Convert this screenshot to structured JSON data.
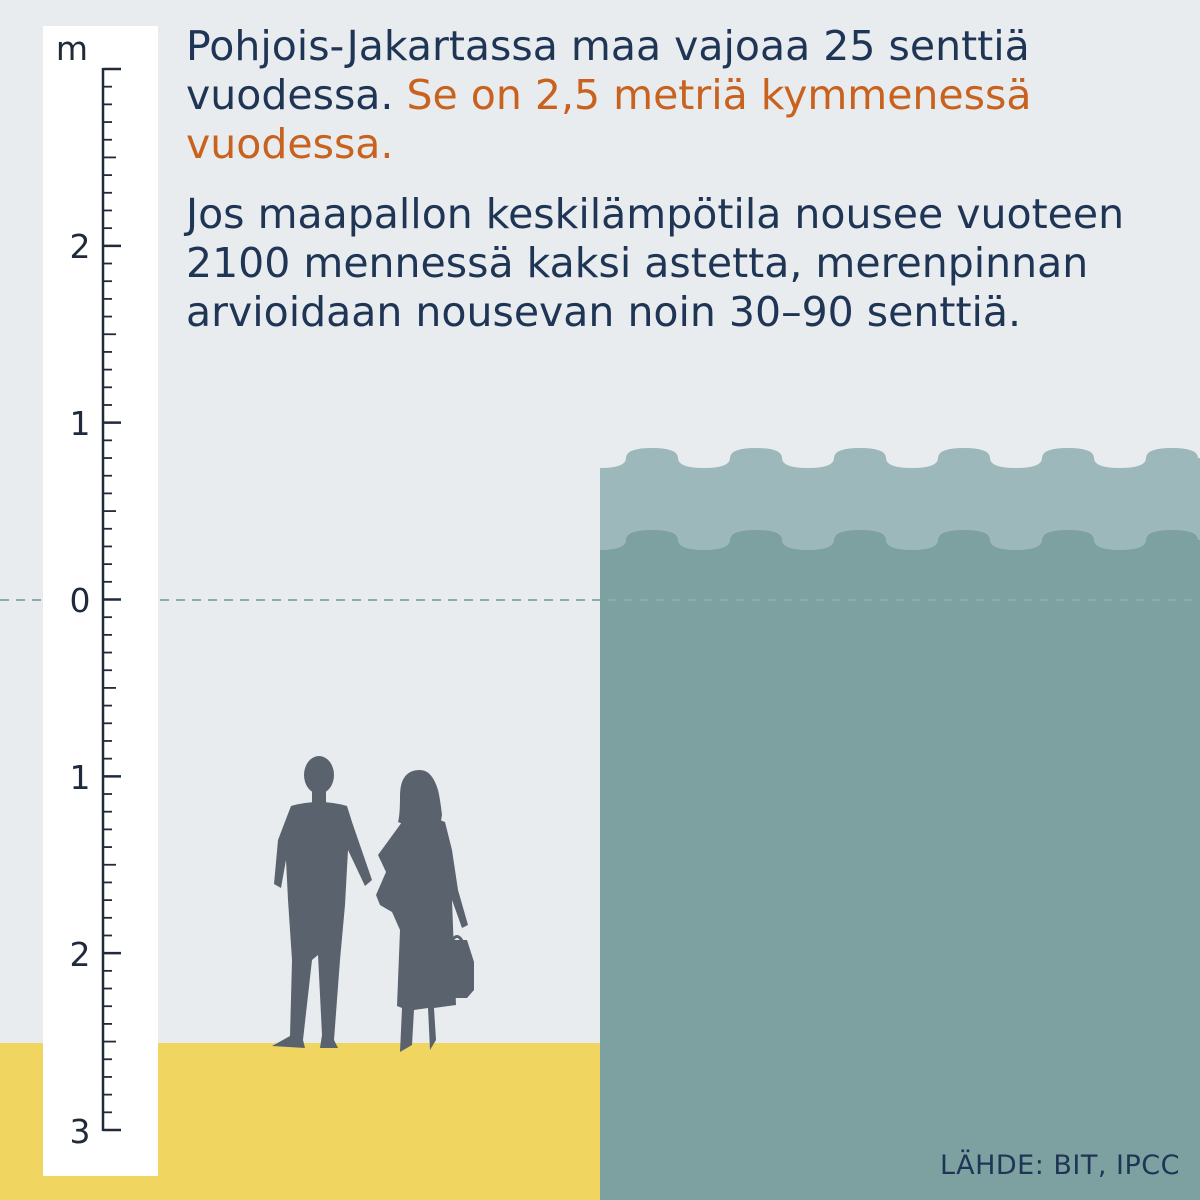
{
  "headline": {
    "part1": "Pohjois-Jakartassa maa vajoaa 25 senttiä vuodessa.",
    "part2": "Se on 2,5 metriä kymmenessä vuodessa."
  },
  "body": "Jos maapallon keskilämpötila nousee vuoteen 2100 mennessä kaksi astetta, merenpinnan arvioidaan nousevan noin 30–90 senttiä.",
  "source": "LÄHDE: BIT, IPCC",
  "scale": {
    "unit": "m",
    "labels": [
      "2",
      "1",
      "0",
      "1",
      "2",
      "3"
    ]
  },
  "colors": {
    "background": "#e9ecee",
    "ground": "#f0d660",
    "water_light": "#9db8ba",
    "water_dark": "#7ca1a0",
    "silhouette": "#5a636d",
    "text": "#1f3556",
    "accent": "#c8621e"
  }
}
